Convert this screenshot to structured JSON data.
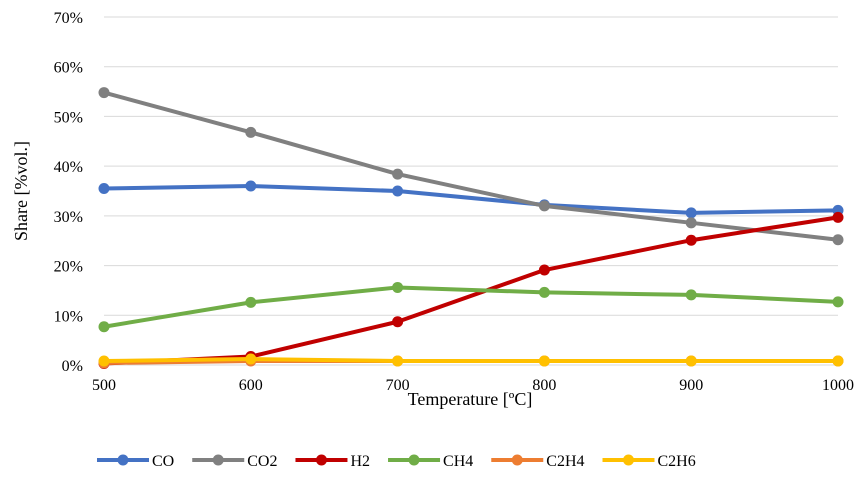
{
  "chart_data": {
    "type": "line",
    "title": "",
    "xlabel": "Temperature [ºC]",
    "ylabel": "Share [%vol.]",
    "x": [
      500,
      600,
      700,
      800,
      900,
      1000
    ],
    "xlim": [
      500,
      1000
    ],
    "ylim": [
      0,
      0.7
    ],
    "y_ticks": [
      0,
      0.1,
      0.2,
      0.3,
      0.4,
      0.5,
      0.6,
      0.7
    ],
    "y_tick_labels": [
      "0%",
      "10%",
      "20%",
      "30%",
      "40%",
      "50%",
      "60%",
      "70%"
    ],
    "x_tick_labels": [
      "500",
      "600",
      "700",
      "800",
      "900",
      "1000"
    ],
    "grid": true,
    "legend_position": "bottom",
    "series": [
      {
        "name": "CO",
        "color": "#4472c4",
        "values": [
          0.355,
          0.36,
          0.35,
          0.322,
          0.306,
          0.311
        ]
      },
      {
        "name": "CO2",
        "color": "#808080",
        "values": [
          0.548,
          0.468,
          0.384,
          0.32,
          0.286,
          0.252
        ]
      },
      {
        "name": "H2",
        "color": "#c00000",
        "values": [
          0.003,
          0.017,
          0.087,
          0.191,
          0.251,
          0.297
        ]
      },
      {
        "name": "CH4",
        "color": "#70ad47",
        "values": [
          0.077,
          0.126,
          0.156,
          0.146,
          0.141,
          0.127
        ]
      },
      {
        "name": "C2H4",
        "color": "#ed7d31",
        "values": [
          0.004,
          0.008,
          0.008,
          0.008,
          0.008,
          0.008
        ]
      },
      {
        "name": "C2H6",
        "color": "#ffc000",
        "values": [
          0.008,
          0.012,
          0.008,
          0.008,
          0.008,
          0.008
        ]
      }
    ]
  }
}
